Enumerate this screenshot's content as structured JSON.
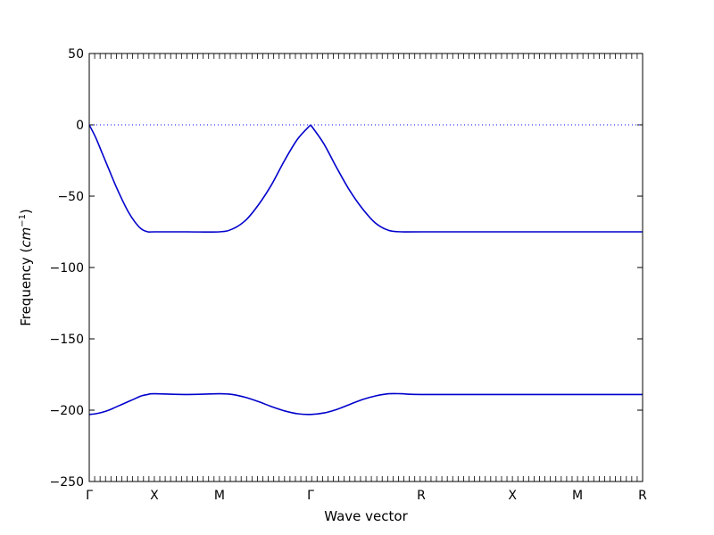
{
  "chart_data": {
    "type": "line",
    "title": "",
    "xlabel": "Wave vector",
    "ylabel": "Frequency ($cm^{-1}$)",
    "ylabel_parts": {
      "text": "Frequency (",
      "math": "cm",
      "sup": "−1",
      "close": ")"
    },
    "ylim": [
      -250,
      50
    ],
    "yticks": [
      50,
      0,
      -50,
      -100,
      -150,
      -200,
      -250
    ],
    "ytick_labels": [
      "50",
      "0",
      "−50",
      "−100",
      "−150",
      "−200",
      "−250"
    ],
    "xlim": [
      0,
      8.5
    ],
    "xticks": [
      {
        "x": 0,
        "label": "Γ"
      },
      {
        "x": 1,
        "label": "X"
      },
      {
        "x": 2,
        "label": "M"
      },
      {
        "x": 3.4,
        "label": "Γ"
      },
      {
        "x": 5.1,
        "label": "R"
      },
      {
        "x": 6.5,
        "label": "X"
      },
      {
        "x": 7.5,
        "label": "M"
      },
      {
        "x": 8.5,
        "label": "R"
      }
    ],
    "zero_line": {
      "y": 0,
      "style": "dotted",
      "color": "#0000ff"
    },
    "series_color": "#0000cc",
    "series": [
      {
        "x": [
          0,
          0.1,
          0.2,
          0.3,
          0.4,
          0.5,
          0.6,
          0.7,
          0.8,
          0.9,
          1.0,
          1.5,
          2.0,
          2.2,
          2.4,
          2.6,
          2.8,
          3.0,
          3.2,
          3.4,
          3.6,
          3.8,
          4.0,
          4.2,
          4.4,
          4.6,
          4.8,
          5.1,
          6.5,
          7.5,
          8.5
        ],
        "y": [
          0,
          -9,
          -20,
          -31,
          -42,
          -52,
          -61,
          -68,
          -73,
          -75,
          -75,
          -75,
          -75,
          -73,
          -67,
          -56,
          -42,
          -25,
          -10,
          0,
          -13,
          -30,
          -46,
          -59,
          -69,
          -74,
          -75,
          -75,
          -75,
          -75,
          -75
        ]
      },
      {
        "x": [
          0,
          0.1,
          0.2,
          0.3,
          0.4,
          0.5,
          0.6,
          0.7,
          0.8,
          0.9,
          1.0,
          1.5,
          2.0,
          2.2,
          2.4,
          2.6,
          2.8,
          3.0,
          3.2,
          3.4,
          3.6,
          3.8,
          4.0,
          4.2,
          4.4,
          4.6,
          4.8,
          5.1,
          6.5,
          7.5,
          8.5
        ],
        "y": [
          -203,
          -202.5,
          -201.5,
          -200,
          -198,
          -196,
          -194,
          -192,
          -190,
          -189,
          -188.5,
          -189,
          -188.5,
          -189,
          -191,
          -194,
          -197.5,
          -200.5,
          -202.5,
          -203,
          -202,
          -199.5,
          -196,
          -192.5,
          -190,
          -188.5,
          -188.5,
          -189,
          -189,
          -189,
          -189
        ]
      }
    ]
  }
}
